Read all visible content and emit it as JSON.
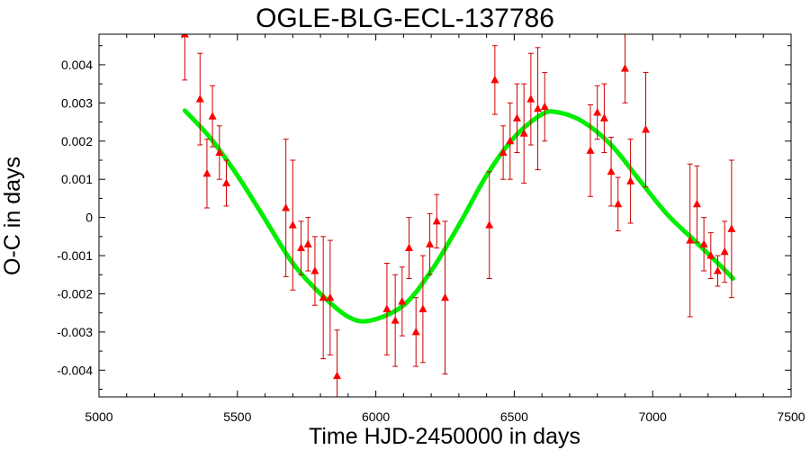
{
  "chart_data": {
    "type": "scatter",
    "title": "OGLE-BLG-ECL-137786",
    "xlabel": "Time HJD-2450000 in days",
    "ylabel": "O-C in days",
    "xlim": [
      5000,
      7500
    ],
    "ylim": [
      -0.0047,
      0.0048
    ],
    "x_ticks": [
      5000,
      5500,
      6000,
      6500,
      7000,
      7500
    ],
    "x_tick_labels": [
      "5000",
      "5500",
      "6000",
      "6500",
      "7000",
      "7500"
    ],
    "y_ticks": [
      0.004,
      0.003,
      0.002,
      0.001,
      0,
      -0.001,
      -0.002,
      -0.003,
      -0.004
    ],
    "y_tick_labels": [
      "0.004",
      "0.003",
      "0.002",
      "0.001",
      "0",
      "-0.001",
      "-0.002",
      "-0.003",
      "-0.004"
    ],
    "grid": false,
    "colors": {
      "points": "#ff0000",
      "errorbars": "#cc0000",
      "fit": "#00ee00"
    },
    "series": [
      {
        "type": "scatter",
        "points": [
          {
            "x": 5310,
            "y": 0.0048,
            "err": 0.0012
          },
          {
            "x": 5365,
            "y": 0.0031,
            "err": 0.0012
          },
          {
            "x": 5390,
            "y": 0.00115,
            "err": 0.0009
          },
          {
            "x": 5410,
            "y": 0.00265,
            "err": 0.0008
          },
          {
            "x": 5435,
            "y": 0.0017,
            "err": 0.0007
          },
          {
            "x": 5460,
            "y": 0.0009,
            "err": 0.0006
          },
          {
            "x": 5675,
            "y": 0.00025,
            "err": 0.0018
          },
          {
            "x": 5700,
            "y": -0.0002,
            "err": 0.0017
          },
          {
            "x": 5730,
            "y": -0.0008,
            "err": 0.0007
          },
          {
            "x": 5755,
            "y": -0.0007,
            "err": 0.0007
          },
          {
            "x": 5780,
            "y": -0.0014,
            "err": 0.0009
          },
          {
            "x": 5810,
            "y": -0.0021,
            "err": 0.0016
          },
          {
            "x": 5835,
            "y": -0.0021,
            "err": 0.0015
          },
          {
            "x": 5860,
            "y": -0.00415,
            "err": 0.0012
          },
          {
            "x": 6040,
            "y": -0.0024,
            "err": 0.0012
          },
          {
            "x": 6070,
            "y": -0.0027,
            "err": 0.0012
          },
          {
            "x": 6095,
            "y": -0.0022,
            "err": 0.0009
          },
          {
            "x": 6120,
            "y": -0.0008,
            "err": 0.0008
          },
          {
            "x": 6145,
            "y": -0.003,
            "err": 0.0009
          },
          {
            "x": 6170,
            "y": -0.0024,
            "err": 0.0014
          },
          {
            "x": 6195,
            "y": -0.0007,
            "err": 0.0008
          },
          {
            "x": 6220,
            "y": -0.0001,
            "err": 0.0007
          },
          {
            "x": 6250,
            "y": -0.0021,
            "err": 0.002
          },
          {
            "x": 6410,
            "y": -0.0002,
            "err": 0.0014
          },
          {
            "x": 6430,
            "y": 0.0036,
            "err": 0.0009
          },
          {
            "x": 6460,
            "y": 0.0017,
            "err": 0.0007
          },
          {
            "x": 6485,
            "y": 0.002,
            "err": 0.001
          },
          {
            "x": 6510,
            "y": 0.0026,
            "err": 0.0009
          },
          {
            "x": 6535,
            "y": 0.0022,
            "err": 0.0013
          },
          {
            "x": 6560,
            "y": 0.0031,
            "err": 0.0012
          },
          {
            "x": 6585,
            "y": 0.00285,
            "err": 0.0016
          },
          {
            "x": 6610,
            "y": 0.0029,
            "err": 0.0009
          },
          {
            "x": 6775,
            "y": 0.00175,
            "err": 0.0012
          },
          {
            "x": 6800,
            "y": 0.00275,
            "err": 0.0007
          },
          {
            "x": 6825,
            "y": 0.0026,
            "err": 0.0009
          },
          {
            "x": 6850,
            "y": 0.0012,
            "err": 0.0009
          },
          {
            "x": 6875,
            "y": 0.00035,
            "err": 0.0007
          },
          {
            "x": 6900,
            "y": 0.0039,
            "err": 0.0009
          },
          {
            "x": 6920,
            "y": 0.00095,
            "err": 0.0011
          },
          {
            "x": 6975,
            "y": 0.0023,
            "err": 0.0015
          },
          {
            "x": 7135,
            "y": -0.0006,
            "err": 0.002
          },
          {
            "x": 7160,
            "y": 0.00035,
            "err": 0.001
          },
          {
            "x": 7185,
            "y": -0.0007,
            "err": 0.0007
          },
          {
            "x": 7210,
            "y": -0.001,
            "err": 0.0006
          },
          {
            "x": 7235,
            "y": -0.0014,
            "err": 0.0004
          },
          {
            "x": 7260,
            "y": -0.0009,
            "err": 0.0008
          },
          {
            "x": 7285,
            "y": -0.0003,
            "err": 0.0018
          }
        ]
      },
      {
        "type": "line",
        "points": [
          {
            "x": 5310,
            "y": 0.0028
          },
          {
            "x": 5400,
            "y": 0.0021
          },
          {
            "x": 5500,
            "y": 0.0011
          },
          {
            "x": 5600,
            "y": -5e-05
          },
          {
            "x": 5700,
            "y": -0.0012
          },
          {
            "x": 5800,
            "y": -0.002
          },
          {
            "x": 5900,
            "y": -0.0026
          },
          {
            "x": 5980,
            "y": -0.0027
          },
          {
            "x": 6100,
            "y": -0.0023
          },
          {
            "x": 6200,
            "y": -0.0014
          },
          {
            "x": 6300,
            "y": -0.0002
          },
          {
            "x": 6400,
            "y": 0.0011
          },
          {
            "x": 6500,
            "y": 0.0021
          },
          {
            "x": 6600,
            "y": 0.0027
          },
          {
            "x": 6660,
            "y": 0.00275
          },
          {
            "x": 6750,
            "y": 0.0025
          },
          {
            "x": 6850,
            "y": 0.0019
          },
          {
            "x": 6950,
            "y": 0.001
          },
          {
            "x": 7050,
            "y": 0.0001
          },
          {
            "x": 7150,
            "y": -0.0006
          },
          {
            "x": 7250,
            "y": -0.0013
          },
          {
            "x": 7290,
            "y": -0.0016
          }
        ]
      }
    ]
  }
}
